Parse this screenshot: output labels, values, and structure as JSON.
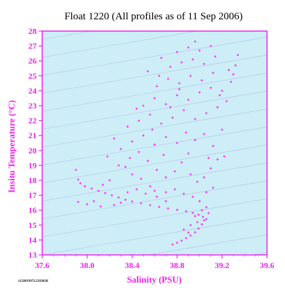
{
  "chart_data": {
    "type": "scatter",
    "title": "Float 1220  (All profiles as of 11 Sep 2006)",
    "xlabel": "Salinity (PSU)",
    "ylabel": "Insitu Temperature (°C)",
    "xlim": [
      37.6,
      39.6
    ],
    "ylim": [
      13,
      28
    ],
    "xticks": [
      "37.6",
      "38.0",
      "38.4",
      "38.8",
      "39.2",
      "39.6"
    ],
    "yticks": [
      "13",
      "14",
      "15",
      "16",
      "17",
      "18",
      "19",
      "20",
      "21",
      "22",
      "23",
      "24",
      "25",
      "26",
      "27",
      "28"
    ],
    "footnote": "1158019973.5919038",
    "grid": false,
    "legend": "none",
    "background_color": "#cdeef7",
    "marker_color": "#ff33ff",
    "axis_color": "#ee22ee",
    "isopycnal_color": "#b9c9e6",
    "series": [
      {
        "values": [
          [
            38.76,
            13.7
          ],
          [
            38.8,
            13.82
          ],
          [
            38.84,
            13.96
          ],
          [
            38.88,
            14.12
          ],
          [
            38.92,
            14.3
          ],
          [
            38.96,
            14.52
          ],
          [
            38.99,
            14.78
          ],
          [
            39.02,
            15.05
          ],
          [
            39.04,
            15.32
          ],
          [
            39.03,
            15.55
          ],
          [
            38.99,
            15.7
          ],
          [
            38.94,
            15.82
          ],
          [
            38.88,
            15.92
          ],
          [
            38.8,
            16.02
          ],
          [
            38.72,
            16.12
          ],
          [
            38.64,
            16.22
          ],
          [
            38.56,
            16.34
          ],
          [
            38.48,
            16.46
          ],
          [
            38.4,
            16.58
          ],
          [
            38.34,
            16.7
          ],
          [
            38.28,
            16.85
          ],
          [
            38.22,
            17.0
          ],
          [
            38.16,
            17.15
          ],
          [
            38.1,
            17.3
          ],
          [
            38.04,
            17.45
          ],
          [
            37.98,
            17.6
          ],
          [
            37.94,
            17.8
          ],
          [
            37.92,
            18.05
          ],
          [
            37.9,
            18.7
          ],
          [
            37.92,
            16.55
          ],
          [
            38.0,
            16.4
          ],
          [
            38.06,
            16.6
          ],
          [
            38.12,
            16.25
          ],
          [
            38.24,
            16.35
          ],
          [
            38.3,
            16.5
          ],
          [
            38.36,
            17.2
          ],
          [
            38.44,
            17.4
          ],
          [
            38.52,
            17.1
          ],
          [
            38.6,
            17.3
          ],
          [
            38.7,
            17.2
          ],
          [
            38.78,
            17.4
          ],
          [
            38.86,
            17.1
          ],
          [
            38.94,
            16.9
          ],
          [
            39.0,
            16.6
          ],
          [
            39.06,
            16.2
          ],
          [
            39.08,
            15.8
          ],
          [
            39.06,
            15.4
          ],
          [
            38.98,
            15.2
          ],
          [
            38.92,
            15.0
          ],
          [
            38.86,
            14.7
          ],
          [
            38.9,
            14.5
          ],
          [
            38.96,
            15.6
          ],
          [
            39.02,
            16.0
          ],
          [
            38.7,
            16.6
          ],
          [
            38.62,
            16.9
          ],
          [
            38.56,
            17.6
          ],
          [
            38.48,
            18.1
          ],
          [
            38.4,
            18.4
          ],
          [
            38.34,
            18.9
          ],
          [
            38.38,
            19.5
          ],
          [
            38.46,
            19.9
          ],
          [
            38.54,
            19.3
          ],
          [
            38.62,
            18.7
          ],
          [
            38.7,
            18.2
          ],
          [
            38.78,
            18.6
          ],
          [
            38.84,
            19.2
          ],
          [
            38.92,
            18.4
          ],
          [
            38.98,
            17.9
          ],
          [
            39.04,
            18.2
          ],
          [
            39.1,
            18.8
          ],
          [
            39.16,
            19.4
          ],
          [
            39.22,
            19.6
          ],
          [
            39.12,
            17.5
          ],
          [
            39.06,
            17.2
          ],
          [
            38.3,
            20.1
          ],
          [
            38.4,
            20.6
          ],
          [
            38.5,
            21.0
          ],
          [
            38.6,
            20.4
          ],
          [
            38.7,
            20.9
          ],
          [
            38.8,
            20.5
          ],
          [
            38.88,
            21.2
          ],
          [
            38.96,
            20.7
          ],
          [
            39.04,
            21.1
          ],
          [
            39.12,
            20.3
          ],
          [
            39.2,
            21.4
          ],
          [
            38.36,
            21.6
          ],
          [
            38.46,
            22.0
          ],
          [
            38.56,
            22.4
          ],
          [
            38.66,
            21.8
          ],
          [
            38.76,
            22.2
          ],
          [
            38.86,
            22.7
          ],
          [
            38.96,
            22.1
          ],
          [
            39.06,
            22.5
          ],
          [
            39.16,
            22.9
          ],
          [
            39.24,
            23.3
          ],
          [
            38.5,
            23.0
          ],
          [
            38.6,
            23.5
          ],
          [
            38.7,
            23.1
          ],
          [
            38.8,
            23.7
          ],
          [
            38.9,
            23.4
          ],
          [
            39.0,
            23.9
          ],
          [
            39.1,
            24.2
          ],
          [
            39.2,
            24.0
          ],
          [
            39.28,
            24.6
          ],
          [
            38.62,
            24.3
          ],
          [
            38.72,
            24.8
          ],
          [
            38.82,
            24.5
          ],
          [
            38.92,
            25.0
          ],
          [
            39.02,
            24.7
          ],
          [
            39.12,
            25.2
          ],
          [
            39.26,
            25.4
          ],
          [
            39.32,
            25.7
          ],
          [
            38.74,
            25.6
          ],
          [
            38.84,
            25.9
          ],
          [
            38.94,
            26.1
          ],
          [
            39.04,
            25.8
          ],
          [
            39.14,
            26.3
          ],
          [
            38.8,
            26.6
          ],
          [
            38.9,
            26.9
          ],
          [
            39.0,
            26.7
          ],
          [
            39.1,
            27.0
          ],
          [
            38.96,
            27.3
          ],
          [
            39.34,
            26.4
          ],
          [
            38.2,
            18.0
          ],
          [
            38.28,
            19.0
          ],
          [
            38.18,
            19.6
          ],
          [
            38.24,
            20.8
          ],
          [
            38.14,
            17.7
          ],
          [
            38.44,
            22.8
          ],
          [
            38.54,
            25.3
          ],
          [
            38.66,
            26.2
          ],
          [
            38.58,
            21.4
          ],
          [
            38.68,
            19.7
          ],
          [
            38.9,
            19.8
          ],
          [
            39.08,
            19.5
          ],
          [
            39.18,
            23.7
          ],
          [
            39.3,
            25.1
          ],
          [
            38.82,
            24.1
          ],
          [
            38.74,
            22.9
          ],
          [
            38.64,
            25.0
          ]
        ]
      }
    ]
  }
}
